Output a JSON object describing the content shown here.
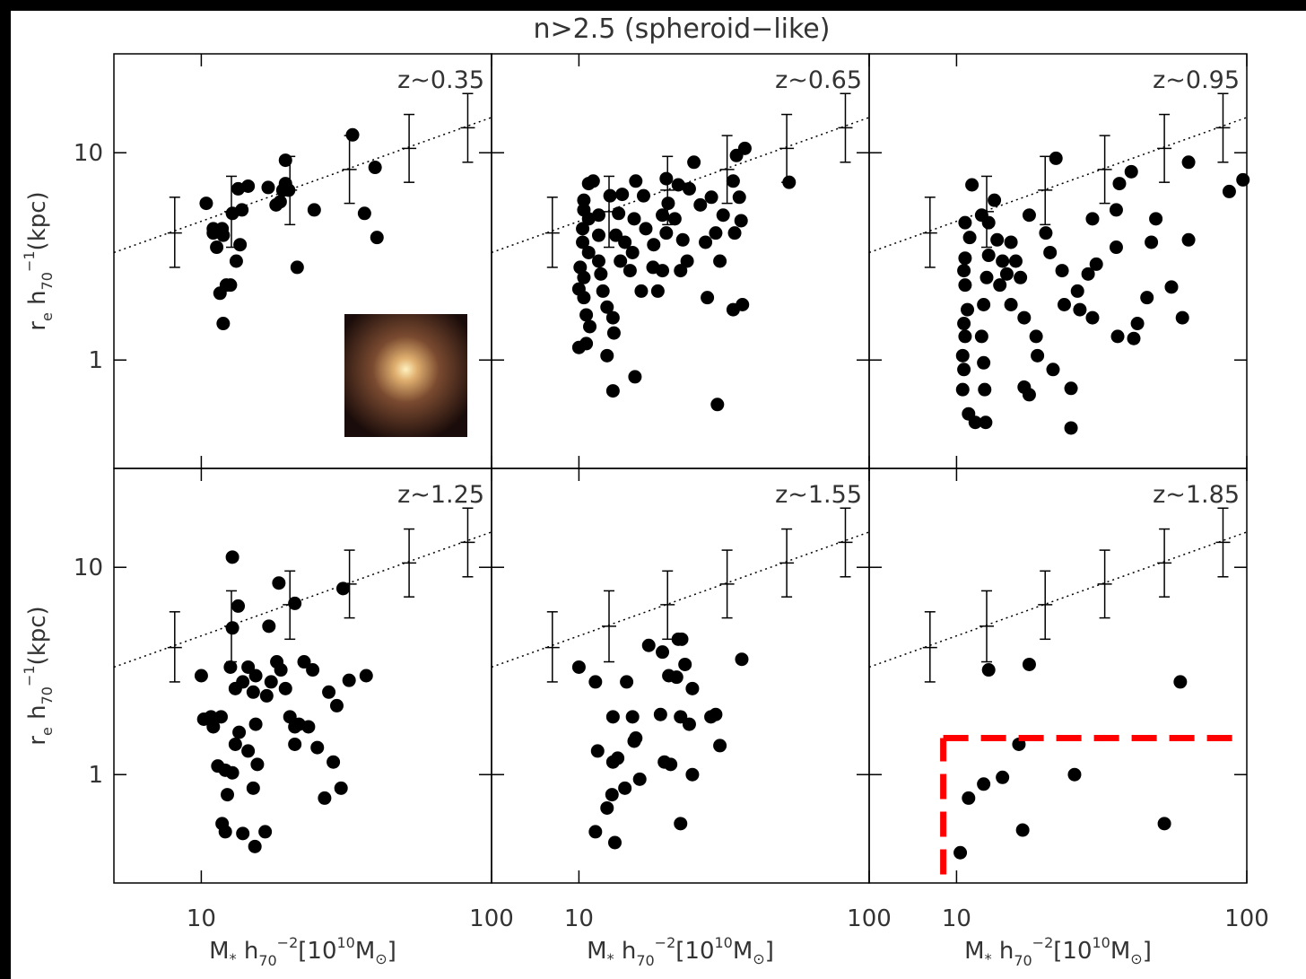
{
  "title": "n>2.5 (spheroid−like)",
  "y_label": [
    "r",
    "e",
    " h",
    "70",
    "−1",
    "(kpc)"
  ],
  "x_label": [
    "M",
    "*",
    " h",
    "70",
    "−2",
    "[10",
    "10",
    "M",
    "⊙",
    "]"
  ],
  "reference": {
    "x": [
      8.1,
      12.7,
      20.2,
      32.4,
      52,
      82.8
    ],
    "y": [
      4.1,
      5.2,
      6.6,
      8.3,
      10.5,
      13.2
    ],
    "y_low": [
      2.8,
      3.5,
      4.5,
      5.7,
      7.2,
      9.0
    ],
    "y_high": [
      6.1,
      7.7,
      9.6,
      12.1,
      15.3,
      19.3
    ],
    "line_x": [
      5,
      100
    ],
    "line_y": [
      3.3,
      14.8
    ]
  },
  "chart_data": [
    {
      "type": "scatter",
      "label": "z~0.35",
      "color": "#000000",
      "log_x": true,
      "log_y": true,
      "xlim": [
        5,
        100
      ],
      "ylim": [
        0.3,
        30
      ],
      "xticks": [
        10,
        100
      ],
      "yticks": [
        1,
        10
      ],
      "x": [
        10.4,
        11.0,
        11.8,
        13.4,
        14.5,
        12.8,
        13.8,
        11.9,
        11.0,
        11.3,
        13.6,
        13.2,
        11.6,
        12.2,
        12.6,
        11.9,
        17.0,
        18.7,
        19.5,
        19.5,
        18.1,
        20.0,
        24.5,
        21.4,
        33.2,
        39.7,
        36.5,
        40.3,
        19.1
      ],
      "y": [
        5.7,
        4.3,
        4.3,
        6.7,
        6.9,
        5.1,
        5.3,
        4.0,
        4.1,
        3.5,
        3.6,
        3.0,
        2.1,
        2.3,
        2.3,
        1.5,
        6.8,
        5.8,
        9.2,
        7.1,
        5.6,
        6.6,
        5.3,
        2.8,
        12.2,
        8.5,
        5.1,
        3.9,
        6.6
      ]
    },
    {
      "type": "scatter",
      "label": "z~0.65",
      "color": "#000000",
      "log_x": true,
      "log_y": true,
      "xlim": [
        5,
        100
      ],
      "ylim": [
        0.3,
        30
      ],
      "xticks": [
        10,
        100
      ],
      "yticks": [
        1,
        10
      ],
      "x": [
        10.8,
        11.2,
        10.4,
        10.4,
        10.3,
        10.8,
        10.3,
        10.8,
        10.1,
        10.4,
        10.0,
        10.4,
        10.6,
        10.9,
        10.0,
        10.6,
        11.7,
        11.7,
        11.7,
        11.9,
        12.1,
        12.5,
        13.1,
        13.2,
        12.5,
        13.1,
        15.6,
        13.7,
        13.4,
        14.4,
        13.9,
        15.0,
        15.3,
        15.5,
        15.7,
        16.7,
        17.0,
        18.1,
        18.0,
        16.4,
        18.7,
        19.4,
        20.0,
        20.3,
        20.0,
        22.0,
        24.0,
        24.9,
        22.8,
        22.4,
        23.6,
        26.2,
        28.6,
        29.6,
        27.3,
        30.6,
        27.7,
        31.4,
        34.0,
        34.9,
        37.3,
        35.7,
        36.2,
        34.4,
        34.0,
        36.6,
        30.0,
        53,
        12.8,
        14.1,
        19.4,
        21.4
      ],
      "y": [
        7.1,
        7.3,
        5.9,
        5.3,
        4.3,
        4.8,
        3.7,
        3.3,
        2.8,
        2.5,
        2.2,
        2.0,
        1.65,
        1.45,
        1.15,
        1.2,
        5.0,
        4.0,
        3.0,
        2.6,
        2.15,
        1.8,
        1.6,
        1.35,
        1.05,
        0.71,
        0.83,
        5.1,
        4.0,
        3.7,
        3.0,
        2.7,
        3.3,
        4.8,
        7.3,
        6.2,
        4.3,
        3.6,
        2.8,
        2.15,
        2.15,
        2.7,
        4.1,
        5.7,
        7.5,
        7.0,
        6.7,
        9.0,
        3.8,
        2.7,
        3.0,
        5.6,
        6.1,
        4.1,
        3.7,
        3.0,
        2.0,
        5.0,
        7.3,
        9.7,
        10.5,
        6.1,
        4.7,
        4.1,
        1.75,
        1.85,
        0.61,
        7.2,
        6.2,
        6.3,
        5.0,
        4.8
      ]
    },
    {
      "type": "scatter",
      "label": "z~0.95",
      "color": "#000000",
      "log_x": true,
      "log_y": true,
      "xlim": [
        5,
        100
      ],
      "ylim": [
        0.3,
        30
      ],
      "xticks": [
        10,
        100
      ],
      "yticks": [
        1,
        10
      ],
      "x": [
        11.3,
        13.5,
        12.2,
        12.9,
        10.7,
        11.1,
        10.7,
        10.6,
        10.7,
        10.9,
        10.6,
        10.7,
        10.5,
        10.6,
        10.5,
        11.0,
        11.6,
        12.6,
        12.5,
        12.4,
        12.2,
        12.4,
        12.7,
        12.9,
        13.8,
        14.4,
        14.9,
        14.1,
        15.4,
        16.0,
        16.6,
        15.4,
        17.1,
        18.8,
        19.0,
        17.1,
        17.8,
        21.5,
        24.8,
        24.8,
        22.0,
        20.3,
        21.0,
        23.1,
        26.1,
        23.5,
        26.6,
        29.4,
        28.4,
        29.4,
        35.5,
        35.5,
        36.4,
        40,
        35.9,
        40.8,
        45.3,
        48.6,
        46.9,
        55,
        63,
        63,
        87,
        97,
        60,
        42,
        17.8,
        30.3
      ],
      "y": [
        7.0,
        5.9,
        5.0,
        4.6,
        4.6,
        3.9,
        3.1,
        2.7,
        2.3,
        1.75,
        1.5,
        1.3,
        1.05,
        0.9,
        0.72,
        0.55,
        0.5,
        0.5,
        0.72,
        0.97,
        1.3,
        1.85,
        2.5,
        3.2,
        3.8,
        3.0,
        2.6,
        2.3,
        3.7,
        3.0,
        2.5,
        1.85,
        1.6,
        1.3,
        1.05,
        0.74,
        0.68,
        0.9,
        0.73,
        0.47,
        9.4,
        4.1,
        3.3,
        2.7,
        2.15,
        1.85,
        1.75,
        1.6,
        2.6,
        4.8,
        5.3,
        3.5,
        7.1,
        8.1,
        1.3,
        1.27,
        2.0,
        4.8,
        3.7,
        2.25,
        9.0,
        3.8,
        6.5,
        7.4,
        1.6,
        1.5,
        5.0,
        2.9
      ]
    },
    {
      "type": "scatter",
      "label": "z~1.25",
      "color": "#000000",
      "log_x": true,
      "log_y": true,
      "xlim": [
        5,
        100
      ],
      "ylim": [
        0.3,
        30
      ],
      "xticks": [
        10,
        100
      ],
      "yticks": [
        1,
        10
      ],
      "x": [
        12.8,
        13.4,
        12.8,
        10,
        10.8,
        10.2,
        11.0,
        11.4,
        12.1,
        12.8,
        12.3,
        11.8,
        12.1,
        13.9,
        15.3,
        16.6,
        15.1,
        15.6,
        14.5,
        13.1,
        13.5,
        15.4,
        13.1,
        13.9,
        14.5,
        15.4,
        15.1,
        16.8,
        17.4,
        18.2,
        18.8,
        18.5,
        17.1,
        21.0,
        19.5,
        20.2,
        21.0,
        21.7,
        23.4,
        21.0,
        22.6,
        24.2,
        25.1,
        28.5,
        26.6,
        30.3,
        27.5,
        29.3,
        30.8,
        32.3,
        37.0,
        12.6,
        11.7
      ],
      "y": [
        11.2,
        6.5,
        5.1,
        3.0,
        1.9,
        1.85,
        1.7,
        1.1,
        1.05,
        1.02,
        0.8,
        0.58,
        0.53,
        0.52,
        0.45,
        0.53,
        0.86,
        1.12,
        1.3,
        1.4,
        1.6,
        1.75,
        2.6,
        2.8,
        3.3,
        3.0,
        2.5,
        2.4,
        2.8,
        3.5,
        3.2,
        8.4,
        5.2,
        6.7,
        2.6,
        1.9,
        1.7,
        1.75,
        1.7,
        1.4,
        3.5,
        3.2,
        1.35,
        1.15,
        0.77,
        0.86,
        2.5,
        2.15,
        7.9,
        2.85,
        3.0,
        3.3,
        1.9
      ]
    },
    {
      "type": "scatter",
      "label": "z~1.55",
      "color": "#000000",
      "log_x": true,
      "log_y": true,
      "xlim": [
        5,
        100
      ],
      "ylim": [
        0.3,
        30
      ],
      "xticks": [
        10,
        100
      ],
      "yticks": [
        1,
        10
      ],
      "x": [
        10,
        11.4,
        11.6,
        11.4,
        13.1,
        13.0,
        12.5,
        13.3,
        14.6,
        13.1,
        13.6,
        15.3,
        15.5,
        16.2,
        15.7,
        17.4,
        19.1,
        19.4,
        20.4,
        21.7,
        22.0,
        22.6,
        23.2,
        24.6,
        19.7,
        20.7,
        22.4,
        24.0,
        24.6,
        22.4,
        28.5,
        29.6,
        30.6,
        36.4,
        14.4
      ],
      "y": [
        3.3,
        2.8,
        1.3,
        0.53,
        1.15,
        0.8,
        0.69,
        0.47,
        2.8,
        1.9,
        1.2,
        1.9,
        1.45,
        0.95,
        1.5,
        4.2,
        1.95,
        3.9,
        3.0,
        2.95,
        4.5,
        4.5,
        3.4,
        2.6,
        1.15,
        1.12,
        1.9,
        1.75,
        1.0,
        0.58,
        1.9,
        1.95,
        1.38,
        3.6,
        0.86
      ]
    },
    {
      "type": "scatter",
      "label": "z~1.85",
      "color": "#000000",
      "log_x": true,
      "log_y": true,
      "xlim": [
        5,
        100
      ],
      "ylim": [
        0.3,
        30
      ],
      "xticks": [
        10,
        100
      ],
      "yticks": [
        1,
        10
      ],
      "x": [
        12.9,
        17.8,
        59,
        16.4,
        14.4,
        12.4,
        11.0,
        10.3,
        16.9,
        25.5,
        52
      ],
      "y": [
        3.2,
        3.4,
        2.8,
        1.4,
        0.97,
        0.9,
        0.77,
        0.42,
        0.54,
        1.0,
        0.58
      ],
      "highlight": {
        "x": [
          9,
          95
        ],
        "y": [
          0.33,
          1.5
        ],
        "color": "#ff0000"
      }
    }
  ]
}
